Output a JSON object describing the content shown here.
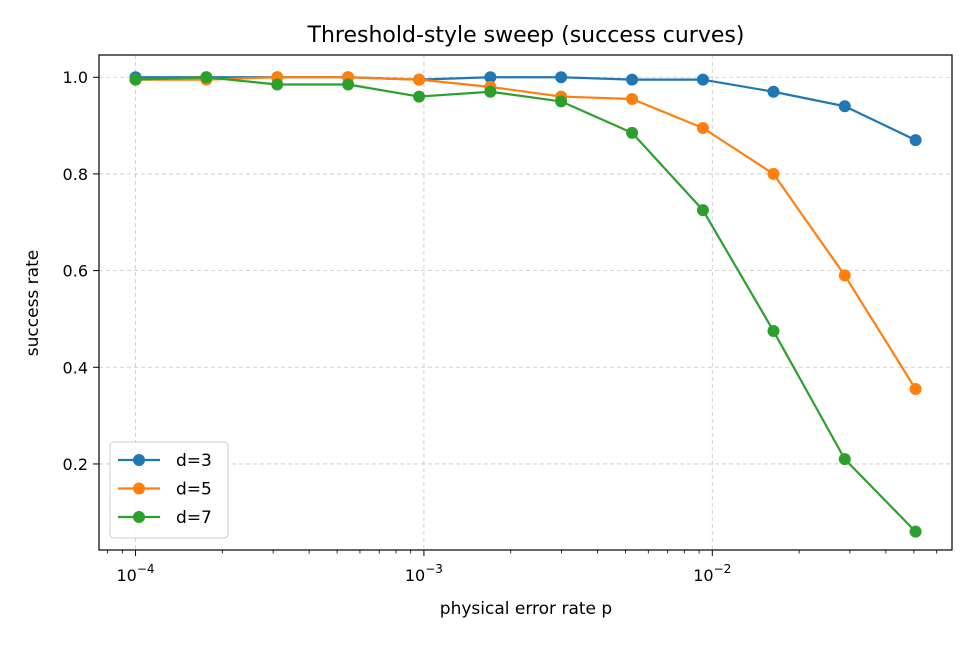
{
  "chart_data": {
    "type": "line",
    "title": "Threshold-style sweep (success curves)",
    "xlabel": "physical error rate p",
    "ylabel": "success rate",
    "xscale": "log",
    "xlim": [
      7.47e-05,
      0.0678
    ],
    "ylim": [
      0.022,
      1.046
    ],
    "xticks": [
      {
        "value": 0.0001,
        "base": "10",
        "exp": "−4"
      },
      {
        "value": 0.001,
        "base": "10",
        "exp": "−3"
      },
      {
        "value": 0.01,
        "base": "10",
        "exp": "−2"
      }
    ],
    "yticks": [
      0.2,
      0.4,
      0.6,
      0.8,
      1.0
    ],
    "ytick_labels": [
      "0.2",
      "0.4",
      "0.6",
      "0.8",
      "1.0"
    ],
    "grid": true,
    "legend": "lower-left",
    "x": [
      0.0001,
      0.000176,
      0.00031,
      0.000546,
      0.000962,
      0.0017,
      0.00299,
      0.00527,
      0.00928,
      0.0163,
      0.0288,
      0.0507
    ],
    "series": [
      {
        "name": "d=3",
        "color": "#1f77b4",
        "values": [
          1.0,
          1.0,
          1.0,
          1.0,
          0.995,
          1.0,
          1.0,
          0.995,
          0.995,
          0.97,
          0.94,
          0.87
        ]
      },
      {
        "name": "d=5",
        "color": "#ff7f0e",
        "values": [
          0.995,
          0.995,
          1.0,
          1.0,
          0.995,
          0.98,
          0.96,
          0.955,
          0.895,
          0.8,
          0.59,
          0.355
        ]
      },
      {
        "name": "d=7",
        "color": "#2ca02c",
        "values": [
          0.995,
          1.0,
          0.985,
          0.985,
          0.96,
          0.97,
          0.95,
          0.885,
          0.725,
          0.475,
          0.21,
          0.06
        ]
      }
    ]
  }
}
